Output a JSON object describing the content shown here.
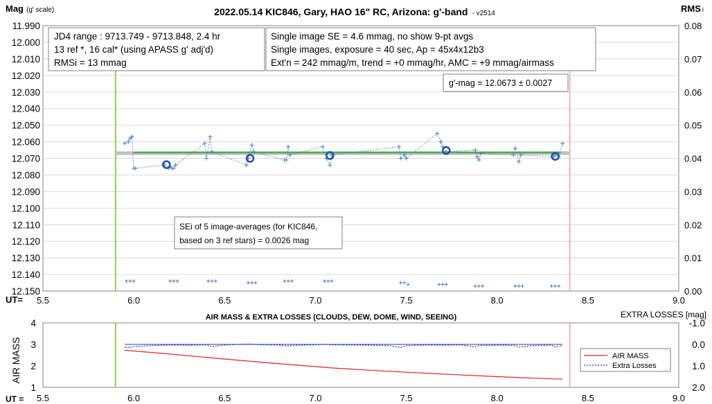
{
  "chart_data": [
    {
      "type": "scatter",
      "title": "2022.05.14 KIC846, Gary, HAO 16\" RC, Arizona: g'-band",
      "version": "- v2514",
      "ylabel_main": "Mag",
      "ylabel_sub": "(g' scale)",
      "y2label_main": "RMS",
      "y2label_sub": "i",
      "xlabel": "UT=",
      "xlim": [
        5.5,
        9.0
      ],
      "ylim": [
        11.99,
        12.15
      ],
      "y_reversed": true,
      "y2lim": [
        0.0,
        0.08
      ],
      "x_ticks": [
        "5.5",
        "6.0",
        "6.5",
        "7.0",
        "7.5",
        "8.0",
        "8.5",
        "9.0"
      ],
      "y_ticks": [
        "11.990",
        "12.000",
        "12.010",
        "12.020",
        "12.030",
        "12.040",
        "12.050",
        "12.060",
        "12.070",
        "12.080",
        "12.090",
        "12.100",
        "12.110",
        "12.120",
        "12.130",
        "12.140",
        "12.150"
      ],
      "y2_ticks": [
        "0.08",
        "0.07",
        "0.06",
        "0.05",
        "0.04",
        "0.03",
        "0.02",
        "0.01",
        "0.00"
      ],
      "grid": "horizontal",
      "vlines": [
        {
          "x": 5.9,
          "color": "#92d050"
        },
        {
          "x": 8.4,
          "color": "#f4b4b4"
        }
      ],
      "info_boxes": [
        {
          "lines": [
            "JD4 range : 9713.749 - 9713.848,  2.4  hr",
            "13 ref *, 16 cal* (using APASS g' adj'd)",
            "RMSi = 13 mmag"
          ]
        },
        {
          "lines": [
            "Single image SE = 4.6 mmag, no show  9-pt avgs",
            "Single images, exposure = 40 sec, Ap = 45x4x12b3",
            "Ext'n = 242 mmag/m, trend = +0 mmag/hr, AMC = +9 mmag/airmass"
          ]
        },
        {
          "lines": [
            "g'-mag = 12.0673 ± 0.0027"
          ]
        },
        {
          "lines": [
            "SEi of 5 image-averages (for KIC846,",
            "based on 3 ref stars) = 0.0026 mag"
          ]
        }
      ],
      "mean_line": {
        "y": 12.0673,
        "color": "#4caf50"
      },
      "trend_line": {
        "x": [
          5.9,
          8.4
        ],
        "y": [
          12.0673,
          12.0673
        ],
        "color": "#bfbfbf"
      },
      "series": [
        {
          "name": "single images",
          "color": "#4a7ebb",
          "x": [
            5.95,
            5.97,
            5.98,
            5.99,
            6.0,
            6.01,
            6.17,
            6.19,
            6.2,
            6.21,
            6.22,
            6.23,
            6.39,
            6.4,
            6.42,
            6.43,
            6.62,
            6.63,
            6.65,
            6.66,
            6.83,
            6.84,
            6.85,
            6.86,
            7.04,
            7.06,
            7.08,
            7.09,
            7.46,
            7.47,
            7.49,
            7.5,
            7.67,
            7.69,
            7.7,
            7.72,
            7.88,
            7.89,
            7.9,
            7.91,
            8.09,
            8.1,
            8.12,
            8.13,
            8.31,
            8.32,
            8.34,
            8.36
          ],
          "y": [
            12.061,
            12.06,
            12.058,
            12.057,
            12.076,
            12.076,
            12.074,
            12.076,
            12.075,
            12.076,
            12.076,
            12.074,
            12.061,
            12.07,
            12.057,
            12.066,
            12.074,
            12.07,
            12.062,
            12.066,
            12.071,
            12.071,
            12.063,
            12.068,
            12.063,
            12.07,
            12.074,
            12.068,
            12.063,
            12.07,
            12.068,
            12.07,
            12.055,
            12.06,
            12.063,
            12.066,
            12.065,
            12.069,
            12.071,
            12.067,
            12.068,
            12.064,
            12.072,
            12.068,
            12.069,
            12.068,
            12.069,
            12.061
          ]
        },
        {
          "name": "5-image averages",
          "color": "#1f4fa8",
          "x": [
            6.18,
            6.64,
            7.08,
            7.72,
            8.32
          ],
          "y": [
            12.0738,
            12.07,
            12.0683,
            12.0653,
            12.0688
          ]
        },
        {
          "name": "RMSi",
          "axis": "y2",
          "color": "#4a7ebb",
          "x": [
            5.96,
            5.98,
            6.0,
            6.2,
            6.22,
            6.24,
            6.41,
            6.43,
            6.45,
            6.63,
            6.65,
            6.67,
            6.83,
            6.85,
            6.87,
            7.05,
            7.07,
            7.09,
            7.47,
            7.49,
            7.51,
            7.68,
            7.7,
            7.72,
            7.88,
            7.9,
            7.92,
            8.1,
            8.12,
            8.14,
            8.3,
            8.32,
            8.34
          ],
          "y": [
            0.003,
            0.003,
            0.003,
            0.003,
            0.003,
            0.003,
            0.003,
            0.003,
            0.003,
            0.0025,
            0.0025,
            0.0025,
            0.003,
            0.003,
            0.003,
            0.003,
            0.003,
            0.003,
            0.0025,
            0.0025,
            0.002,
            0.002,
            0.002,
            0.002,
            0.0015,
            0.0015,
            0.0015,
            0.0015,
            0.0015,
            0.0015,
            0.0015,
            0.0015,
            0.0015
          ]
        }
      ]
    },
    {
      "type": "line",
      "title": "AIR MASS & EXTRA LOSSES (CLOUDS, DEW, DOME, WIND, SEEING)",
      "ylabel": "AIR MASS",
      "y2label": "EXTRA LOSSES [mag]",
      "xlabel": "UT =",
      "xlim": [
        5.5,
        9.0
      ],
      "ylim": [
        1,
        4
      ],
      "y2lim": [
        -1.0,
        2.0
      ],
      "y2_reversed": true,
      "x_ticks": [
        "5.5",
        "6.0",
        "6.5",
        "7.0",
        "7.5",
        "8.0",
        "8.5",
        "9.0"
      ],
      "y_ticks": [
        "4",
        "3",
        "2",
        "1"
      ],
      "y2_ticks": [
        "-1.0",
        "0.0",
        "1.0",
        "2.0"
      ],
      "legend": "right",
      "vlines": [
        {
          "x": 5.9,
          "color": "#92d050"
        },
        {
          "x": 8.4,
          "color": "#f4b4b4"
        }
      ],
      "series": [
        {
          "name": "AIR MASS",
          "axis": "y",
          "color": "#e02020",
          "style": "solid",
          "x": [
            5.95,
            6.2,
            6.5,
            6.8,
            7.1,
            7.4,
            7.7,
            8.0,
            8.2,
            8.36
          ],
          "y": [
            2.73,
            2.55,
            2.32,
            2.1,
            1.9,
            1.75,
            1.62,
            1.5,
            1.43,
            1.38
          ]
        },
        {
          "name": "Extra Losses",
          "axis": "y2",
          "color": "#1f3ea8",
          "style": "dotted",
          "x": [
            5.95,
            5.98,
            6.0,
            6.05,
            6.1,
            6.2,
            6.3,
            6.4,
            6.43,
            6.5,
            6.6,
            6.64,
            6.7,
            6.8,
            6.85,
            6.9,
            7.0,
            7.05,
            7.1,
            7.2,
            7.3,
            7.4,
            7.47,
            7.5,
            7.6,
            7.7,
            7.8,
            7.88,
            7.9,
            8.0,
            8.1,
            8.12,
            8.2,
            8.3,
            8.32,
            8.36
          ],
          "y": [
            0.12,
            0.15,
            0.1,
            0.08,
            0.05,
            0.03,
            0.04,
            0.02,
            0.1,
            0.03,
            -0.01,
            -0.02,
            0.02,
            0.03,
            0.07,
            0.04,
            0.02,
            0.0,
            0.02,
            0.03,
            0.04,
            0.05,
            0.15,
            0.06,
            0.03,
            0.04,
            0.02,
            0.12,
            0.05,
            0.04,
            0.05,
            0.13,
            0.05,
            0.04,
            0.12,
            0.05
          ]
        }
      ]
    }
  ]
}
